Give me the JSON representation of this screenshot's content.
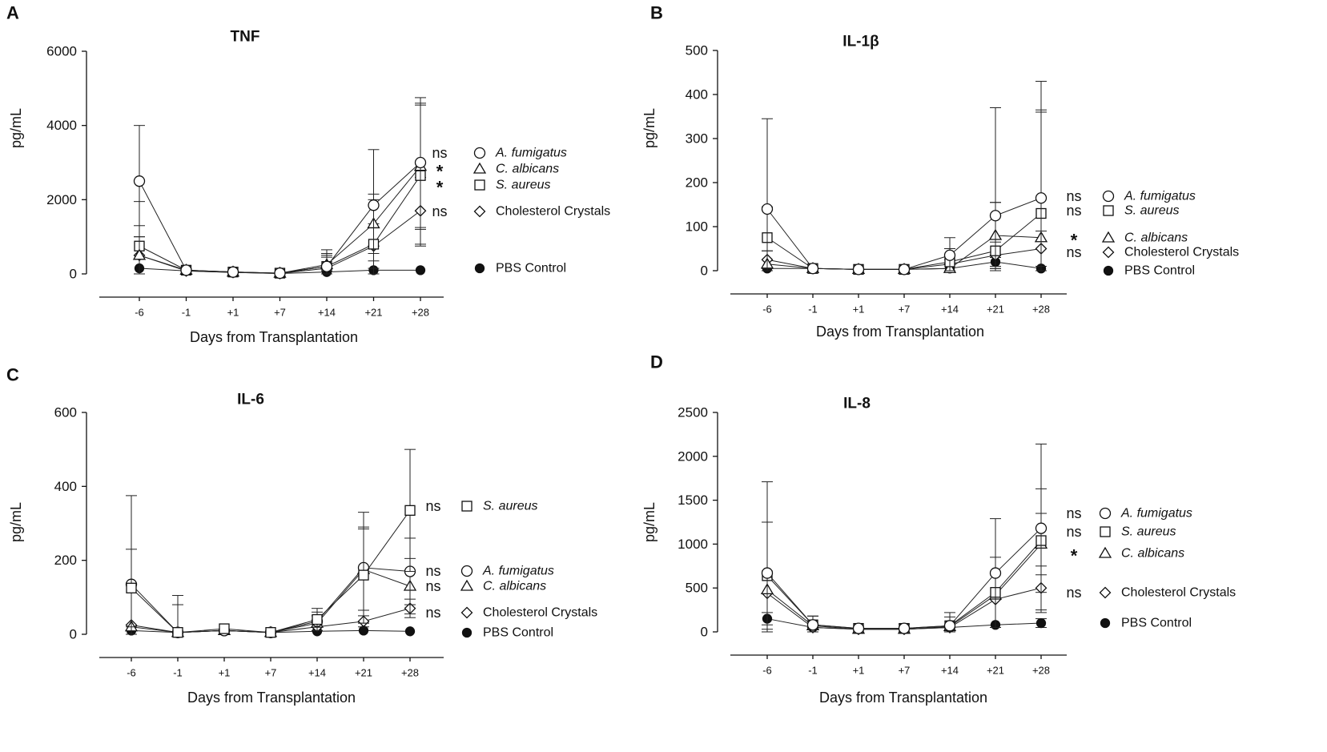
{
  "chart_data": [
    {
      "type": "line",
      "panel_label": "A",
      "title": "TNF",
      "xlabel": "Days from Transplantation",
      "ylabel": "pg/mL",
      "categories": [
        "-6",
        "-1",
        "+1",
        "+7",
        "+14",
        "+21",
        "+28"
      ],
      "ylim": [
        0,
        6000
      ],
      "yticks": [
        "0",
        "2000",
        "4000",
        "6000"
      ],
      "series": [
        {
          "name": "A. fumigatus",
          "marker": "circle",
          "values": [
            2500,
            100,
            50,
            20,
            200,
            1850,
            3000
          ],
          "err": [
            1500,
            0,
            0,
            0,
            300,
            1500,
            1750
          ],
          "sig": "ns"
        },
        {
          "name": "C. albicans",
          "marker": "triangle",
          "values": [
            500,
            100,
            50,
            20,
            250,
            1350,
            2900
          ],
          "err": [
            800,
            0,
            0,
            0,
            300,
            800,
            1700
          ],
          "sig": "*"
        },
        {
          "name": "S. aureus",
          "marker": "square",
          "values": [
            750,
            100,
            50,
            20,
            200,
            800,
            2650
          ],
          "err": [
            1200,
            0,
            0,
            0,
            450,
            1200,
            1900
          ],
          "sig": "*"
        },
        {
          "name": "Cholesterol Crystals",
          "marker": "diamond",
          "values": [
            500,
            80,
            40,
            10,
            150,
            750,
            1700
          ],
          "err": [
            500,
            0,
            0,
            0,
            300,
            600,
            900
          ],
          "sig": "ns"
        },
        {
          "name": "PBS Control",
          "marker": "dot",
          "values": [
            150,
            80,
            40,
            10,
            50,
            100,
            100
          ],
          "err": [
            0,
            0,
            0,
            0,
            0,
            0,
            0
          ],
          "sig": ""
        }
      ]
    },
    {
      "type": "line",
      "panel_label": "B",
      "title": "IL-1β",
      "xlabel": "Days from Transplantation",
      "ylabel": "pg/mL",
      "categories": [
        "-6",
        "-1",
        "+1",
        "+7",
        "+14",
        "+21",
        "+28"
      ],
      "ylim": [
        0,
        500
      ],
      "yticks": [
        "0",
        "100",
        "200",
        "300",
        "400",
        "500"
      ],
      "series": [
        {
          "name": "A. fumigatus",
          "marker": "circle",
          "values": [
            140,
            5,
            3,
            3,
            35,
            125,
            165
          ],
          "err": [
            205,
            0,
            0,
            0,
            40,
            245,
            265
          ],
          "sig": "ns"
        },
        {
          "name": "S. aureus",
          "marker": "square",
          "values": [
            75,
            5,
            3,
            3,
            20,
            45,
            130
          ],
          "err": [
            70,
            0,
            0,
            0,
            30,
            110,
            230
          ],
          "sig": "ns"
        },
        {
          "name": "C. albicans",
          "marker": "triangle",
          "values": [
            15,
            5,
            3,
            3,
            5,
            80,
            75
          ],
          "err": [
            30,
            0,
            0,
            0,
            20,
            75,
            290
          ],
          "sig": "*"
        },
        {
          "name": "Cholesterol Crystals",
          "marker": "diamond",
          "values": [
            25,
            5,
            3,
            3,
            15,
            35,
            50
          ],
          "err": [
            20,
            0,
            0,
            0,
            20,
            30,
            40
          ],
          "sig": "ns"
        },
        {
          "name": "PBS Control",
          "marker": "dot",
          "values": [
            5,
            5,
            3,
            3,
            5,
            20,
            5
          ],
          "err": [
            0,
            0,
            0,
            0,
            0,
            10,
            0
          ],
          "sig": ""
        }
      ]
    },
    {
      "type": "line",
      "panel_label": "C",
      "title": "IL-6",
      "xlabel": "Days from Transplantation",
      "ylabel": "pg/mL",
      "categories": [
        "-6",
        "-1",
        "+1",
        "+7",
        "+14",
        "+21",
        "+28"
      ],
      "ylim": [
        0,
        600
      ],
      "yticks": [
        "0",
        "200",
        "400",
        "600"
      ],
      "series": [
        {
          "name": "S. aureus",
          "marker": "square",
          "values": [
            125,
            5,
            15,
            5,
            40,
            160,
            335
          ],
          "err": [
            105,
            100,
            0,
            0,
            30,
            130,
            165
          ],
          "sig": "ns"
        },
        {
          "name": "A. fumigatus",
          "marker": "circle",
          "values": [
            135,
            5,
            10,
            5,
            35,
            180,
            170
          ],
          "err": [
            240,
            75,
            0,
            0,
            25,
            150,
            90
          ],
          "sig": "ns"
        },
        {
          "name": "C. albicans",
          "marker": "triangle",
          "values": [
            20,
            5,
            10,
            5,
            30,
            175,
            130
          ],
          "err": [
            0,
            0,
            0,
            0,
            20,
            110,
            75
          ],
          "sig": "ns"
        },
        {
          "name": "Cholesterol Crystals",
          "marker": "diamond",
          "values": [
            25,
            5,
            10,
            5,
            20,
            35,
            70
          ],
          "err": [
            0,
            0,
            0,
            0,
            0,
            15,
            25
          ],
          "sig": "ns"
        },
        {
          "name": "PBS Control",
          "marker": "dot",
          "values": [
            10,
            5,
            10,
            5,
            8,
            10,
            8
          ],
          "err": [
            0,
            0,
            0,
            0,
            0,
            0,
            0
          ],
          "sig": ""
        }
      ]
    },
    {
      "type": "line",
      "panel_label": "D",
      "title": "IL-8",
      "xlabel": "Days from Transplantation",
      "ylabel": "pg/mL",
      "categories": [
        "-6",
        "-1",
        "+1",
        "+7",
        "+14",
        "+21",
        "+28"
      ],
      "ylim": [
        0,
        2500
      ],
      "yticks": [
        "0",
        "500",
        "1000",
        "1500",
        "2000",
        "2500"
      ],
      "series": [
        {
          "name": "A. fumigatus",
          "marker": "circle",
          "values": [
            670,
            80,
            40,
            40,
            70,
            670,
            1180
          ],
          "err": [
            1040,
            100,
            0,
            50,
            150,
            620,
            960
          ],
          "sig": "ns"
        },
        {
          "name": "S. aureus",
          "marker": "square",
          "values": [
            640,
            80,
            40,
            40,
            70,
            450,
            1040
          ],
          "err": [
            610,
            100,
            0,
            50,
            100,
            400,
            590
          ],
          "sig": "ns"
        },
        {
          "name": "C. albicans",
          "marker": "triangle",
          "values": [
            480,
            70,
            30,
            30,
            60,
            420,
            1000
          ],
          "err": [
            0,
            0,
            0,
            0,
            0,
            0,
            350
          ],
          "sig": "*"
        },
        {
          "name": "Cholesterol Crystals",
          "marker": "diamond",
          "values": [
            440,
            50,
            30,
            30,
            50,
            370,
            500
          ],
          "err": [
            0,
            0,
            0,
            0,
            0,
            0,
            250
          ],
          "sig": "ns"
        },
        {
          "name": "PBS Control",
          "marker": "dot",
          "values": [
            150,
            50,
            30,
            30,
            50,
            80,
            100
          ],
          "err": [
            70,
            0,
            0,
            0,
            0,
            0,
            50
          ],
          "sig": ""
        }
      ]
    }
  ]
}
